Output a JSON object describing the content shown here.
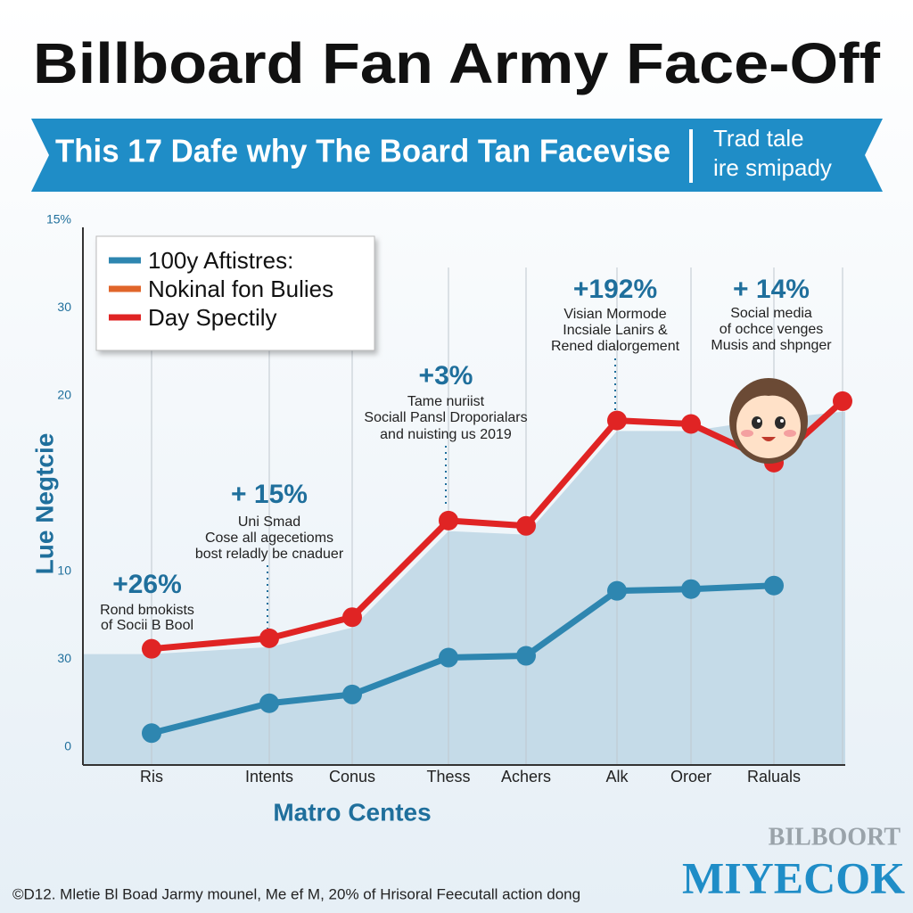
{
  "chart_data": {
    "type": "line",
    "title": "Billboard Fan Army Face-Off",
    "subtitle": "This 17 Dafe why The Board Tan Facevise",
    "side_note": [
      "Trad tale",
      "ire smipady"
    ],
    "categories": [
      "Ris",
      "Intents",
      "Conus",
      "Thess",
      "Achers",
      "Alk",
      "Oroer",
      "Raluals",
      null
    ],
    "xlabel": "Matro Centes",
    "ylabel": "Lue Negtcie",
    "ylim": [
      0,
      30
    ],
    "yticks": [
      0,
      {
        "value": 5,
        "label": "30"
      },
      10,
      20,
      {
        "value": 25,
        "label": "30"
      },
      {
        "value": 30,
        "label": "15%"
      }
    ],
    "legend": "upper left",
    "series": [
      {
        "name": "100y Aftistres:",
        "color": "#2e86b0",
        "style": "line",
        "values": [
          0.8,
          2.5,
          3.0,
          5.1,
          5.2,
          8.9,
          9.0,
          9.2,
          null
        ]
      },
      {
        "name": "Nokinal fon Bulies",
        "color": "#e0652a",
        "fill": "#c5dbe8",
        "style": "area",
        "values": [
          5.3,
          5.7,
          6.8,
          12.3,
          12.1,
          18.0,
          18.0,
          18.7,
          19.1
        ]
      },
      {
        "name": "Day Spectily",
        "color": "#e02424",
        "style": "line",
        "values": [
          5.6,
          6.2,
          7.4,
          12.9,
          12.6,
          18.6,
          18.4,
          16.2,
          19.7
        ]
      }
    ],
    "annotations": [
      {
        "value": "+26%",
        "lines": [
          "Rond bmokists",
          "of Socii B Bool"
        ]
      },
      {
        "value": "+ 15%",
        "lines": [
          "Uni Smad",
          "Cose all agecetioms",
          "bost reladly be cnaduer"
        ]
      },
      {
        "value": "+3%",
        "lines": [
          "Tame nuriist",
          "Sociall Pansl Droporialars",
          "and nuisting us 2019"
        ]
      },
      {
        "value": "+192%",
        "lines": [
          "Visian Mormode",
          "Incsiale Lanirs &",
          "Rened dialorgement"
        ]
      },
      {
        "value": "+ 14%",
        "lines": [
          "Social media",
          "of ochce venges",
          "Musis and shpnger"
        ]
      }
    ],
    "footer": "©D12. Mletie Bl Boad Jarmy mounel, Me ef M, 20% of Hrisoral Feecutall action dong",
    "watermark": [
      "BILBOORT",
      "MIYECOK"
    ]
  }
}
